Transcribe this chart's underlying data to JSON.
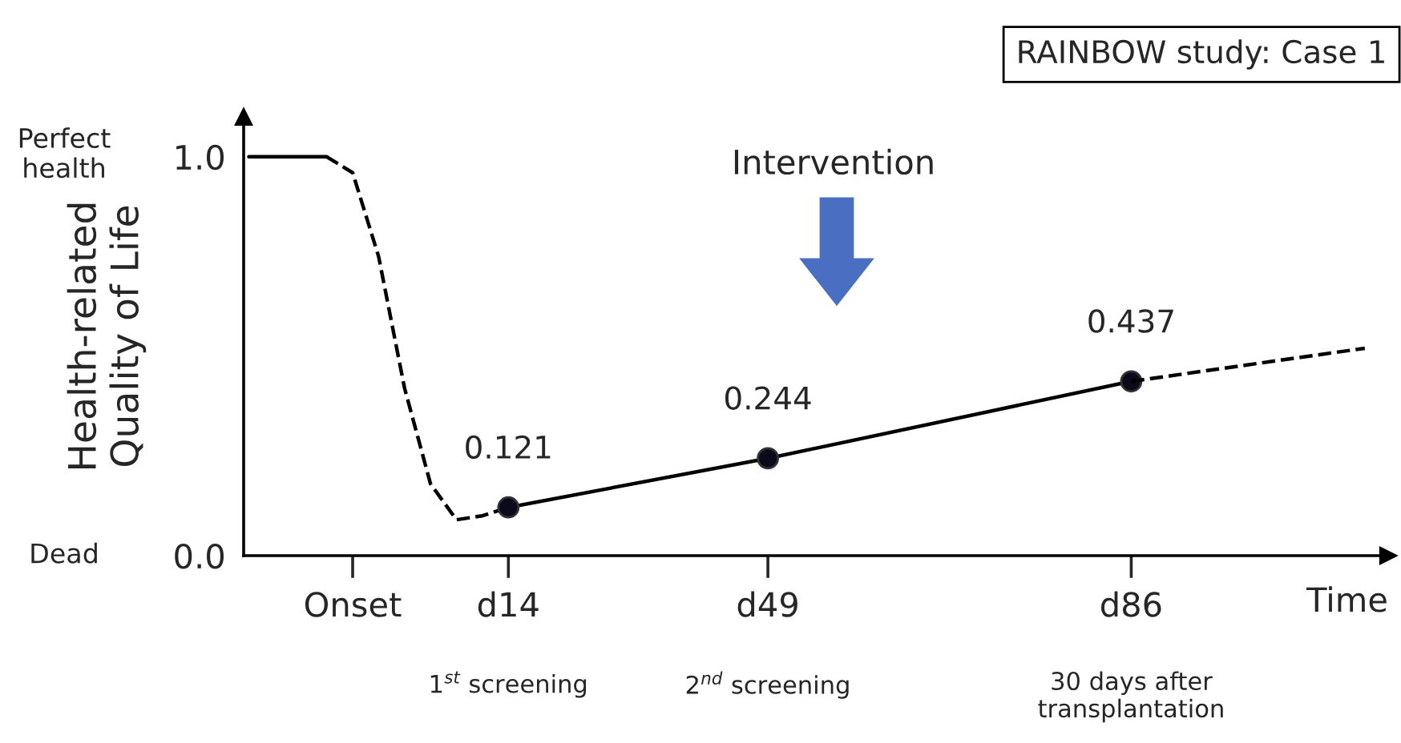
{
  "chart_data": {
    "type": "line",
    "title": "RAINBOW study: Case 1",
    "xlabel": "Time",
    "ylabel": "Health-related\nQuality of Life",
    "categories": [
      null,
      null,
      null,
      null,
      "Onset",
      null,
      null,
      null,
      null,
      null,
      "d14",
      null,
      null,
      null,
      null,
      null,
      null,
      null,
      null,
      null,
      "d49",
      null,
      null,
      null,
      null,
      null,
      null,
      null,
      null,
      null,
      null,
      null,
      null,
      null,
      "d86",
      null,
      null,
      null,
      null,
      null,
      null,
      null,
      null,
      null
    ],
    "ylim": [
      0,
      1.1
    ],
    "yticks": [
      {
        "value": 0,
        "label": "0.0"
      },
      {
        "value": 1,
        "label": "1.0"
      }
    ],
    "grid": false,
    "series": [
      {
        "color": "#000000",
        "line_style": "solid",
        "marker": "none",
        "values": [
          1.0,
          1.0,
          1.0,
          1.0,
          null,
          null,
          null,
          null,
          null,
          null,
          null,
          null,
          null,
          null,
          null,
          null,
          null,
          null,
          null,
          null,
          null,
          null,
          null,
          null,
          null,
          null,
          null,
          null,
          null,
          null,
          null,
          null,
          null,
          null,
          null,
          null,
          null,
          null,
          null,
          null,
          null,
          null,
          null,
          null
        ]
      },
      {
        "color": "#000000",
        "line_style": "dashed",
        "marker": "none",
        "values": [
          null,
          null,
          null,
          1.0,
          0.96,
          0.75,
          0.42,
          0.18,
          0.09,
          0.1,
          0.121,
          null,
          null,
          null,
          null,
          null,
          null,
          null,
          null,
          null,
          null,
          null,
          null,
          null,
          null,
          null,
          null,
          null,
          null,
          null,
          null,
          null,
          null,
          null,
          null,
          null,
          null,
          null,
          null,
          null,
          null,
          null,
          null,
          null
        ]
      },
      {
        "color": "#000000",
        "line_style": "solid",
        "marker": "circle",
        "values": [
          null,
          null,
          null,
          null,
          null,
          null,
          null,
          null,
          null,
          null,
          0.121,
          null,
          null,
          null,
          null,
          null,
          null,
          null,
          null,
          null,
          0.244,
          null,
          null,
          null,
          null,
          null,
          null,
          null,
          null,
          null,
          null,
          null,
          null,
          null,
          0.437,
          null,
          null,
          null,
          null,
          null,
          null,
          null,
          null,
          null
        ],
        "value_labels": [
          null,
          null,
          null,
          null,
          null,
          null,
          null,
          null,
          null,
          null,
          "0.121",
          null,
          null,
          null,
          null,
          null,
          null,
          null,
          null,
          null,
          "0.244",
          null,
          null,
          null,
          null,
          null,
          null,
          null,
          null,
          null,
          null,
          null,
          null,
          null,
          "0.437",
          null,
          null,
          null,
          null,
          null,
          null,
          null,
          null,
          null
        ]
      },
      {
        "color": "#000000",
        "line_style": "dashed",
        "values": [
          null,
          null,
          null,
          null,
          null,
          null,
          null,
          null,
          null,
          null,
          null,
          null,
          null,
          null,
          null,
          null,
          null,
          null,
          null,
          null,
          null,
          null,
          null,
          null,
          null,
          null,
          null,
          null,
          null,
          null,
          null,
          null,
          null,
          null,
          0.437,
          null,
          null,
          null,
          null,
          null,
          null,
          null,
          null,
          0.52
        ]
      }
    ],
    "annotations": [
      "Intervention",
      "Perfect\nhealth",
      "Dead",
      "1$^{st}$ screening",
      "2$^{nd}$ screening",
      "30 days after\ntransplantation"
    ]
  }
}
